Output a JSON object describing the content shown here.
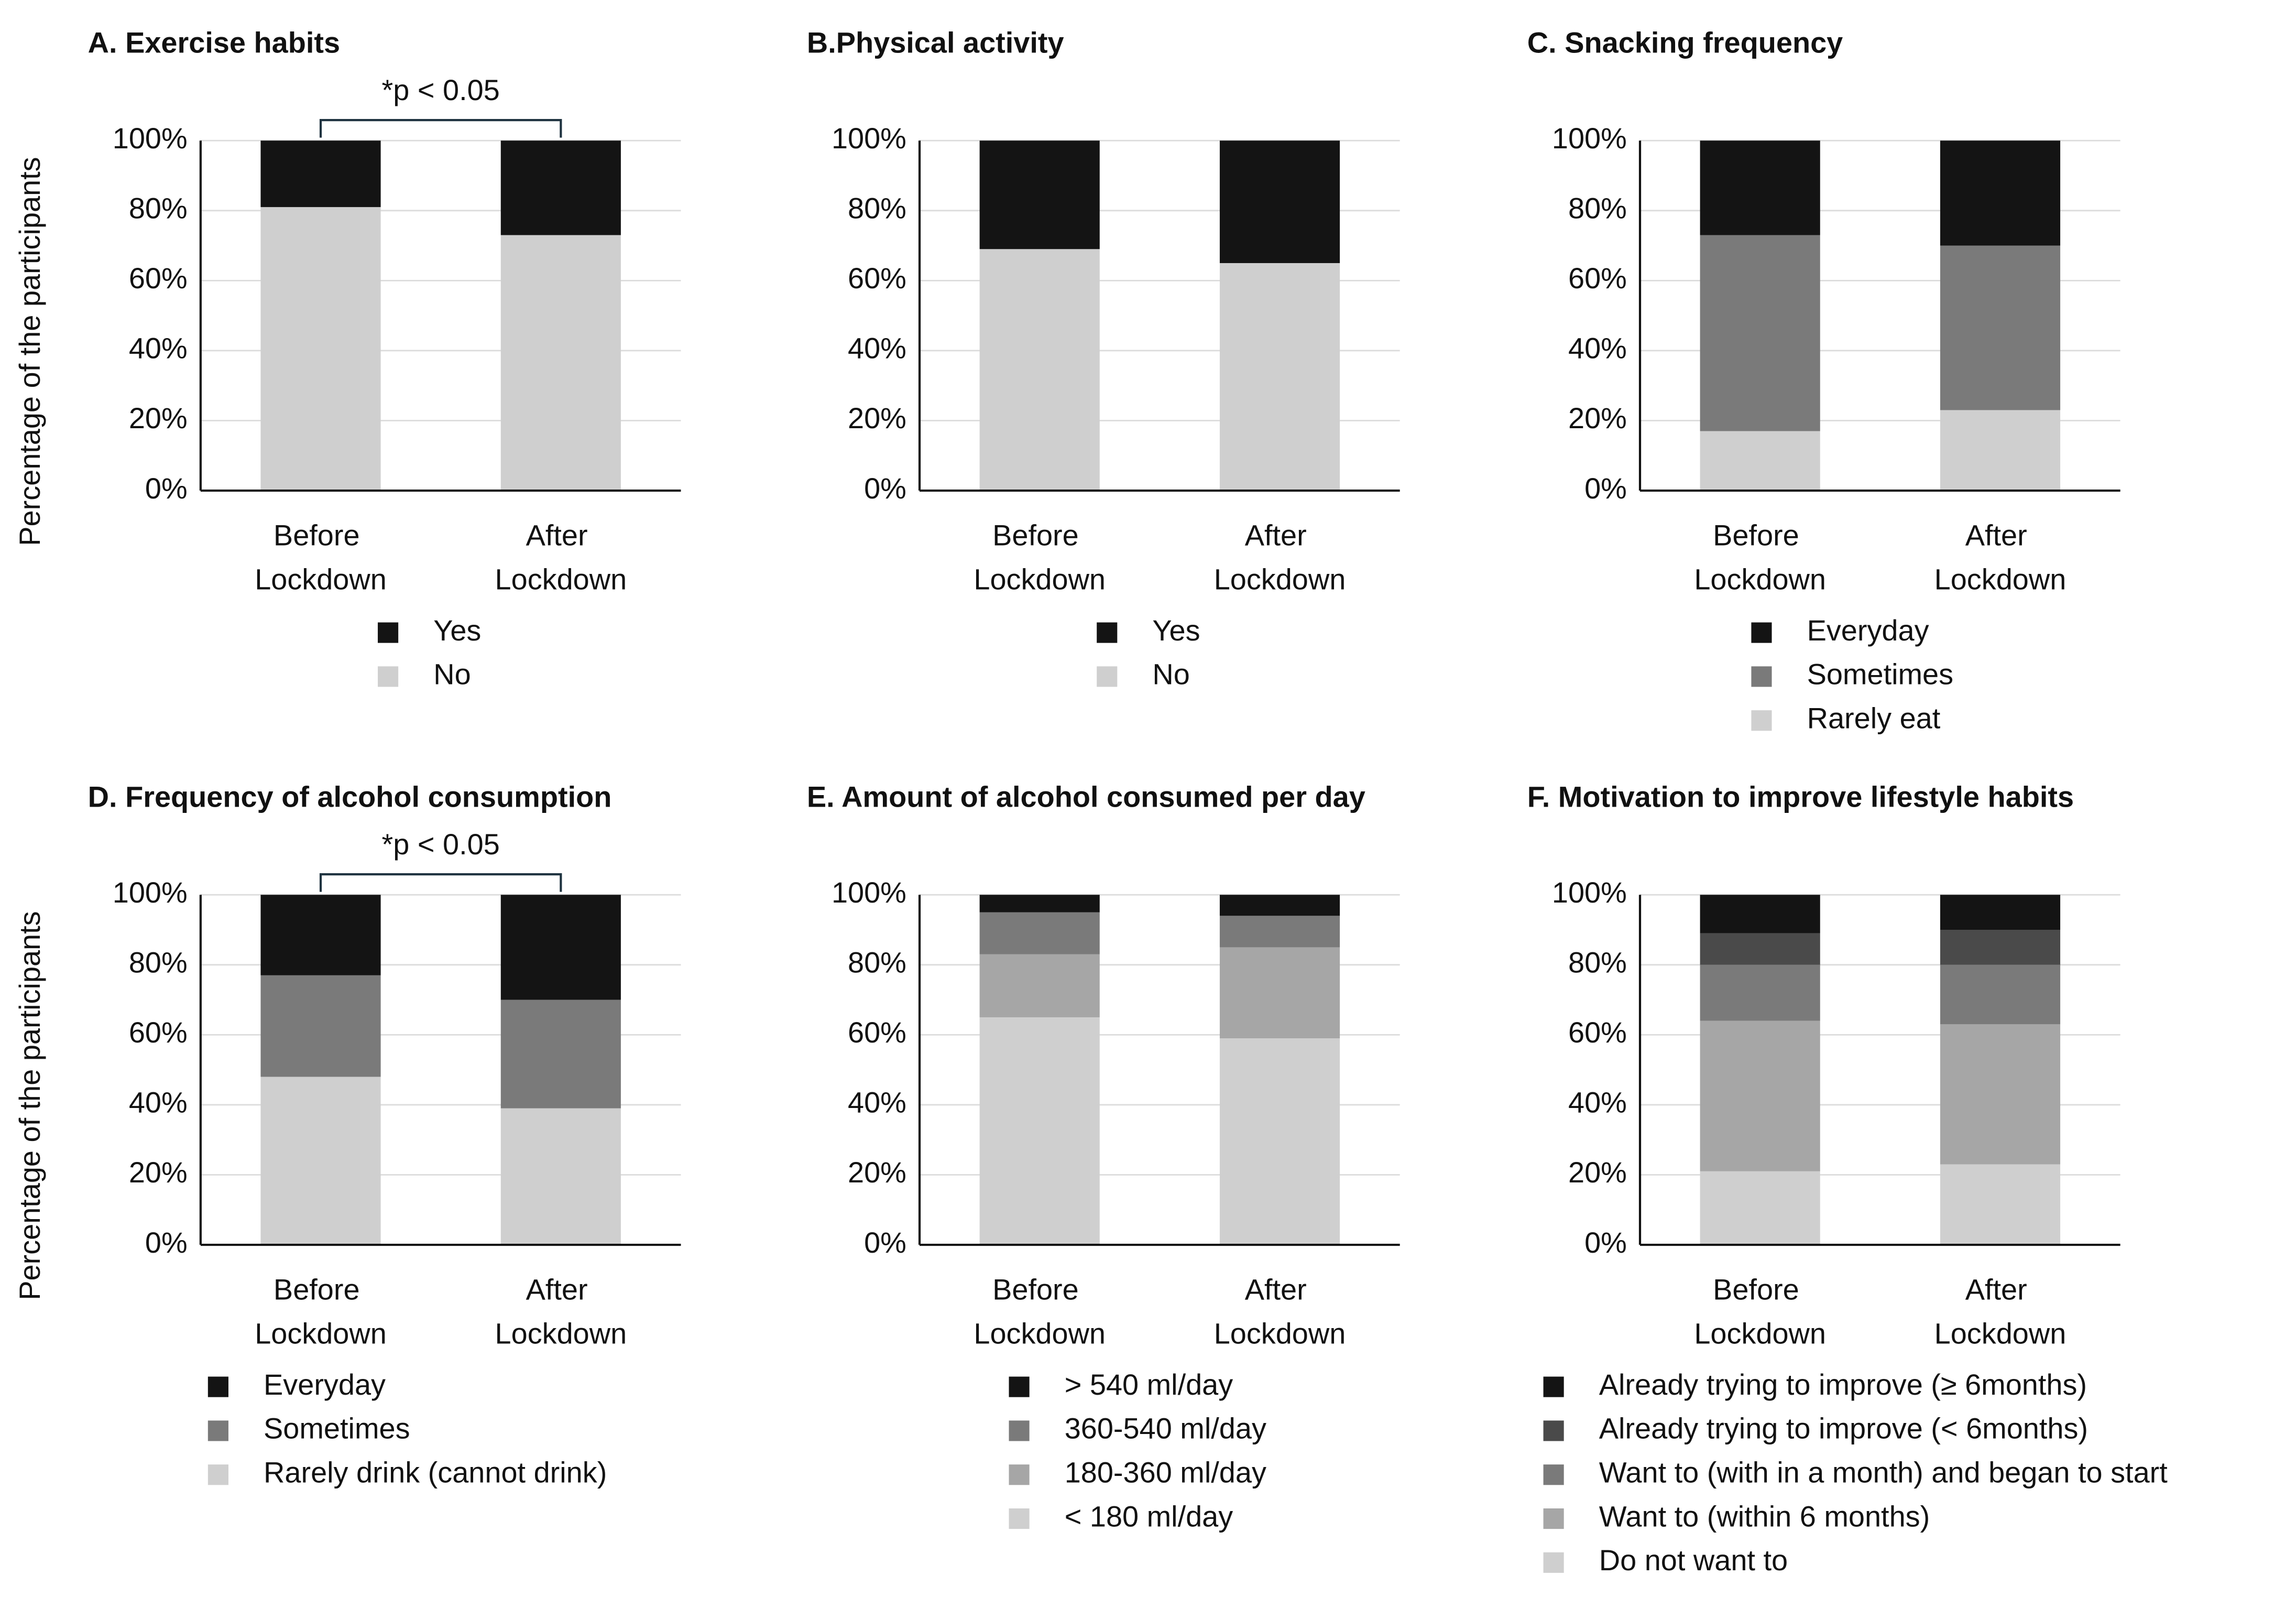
{
  "chart_data": [
    {
      "type": "stacked_bar",
      "title": "A. Exercise habits",
      "ylabel": "Percentage of the participants",
      "annotation": "*p < 0.05",
      "categories": [
        "Before Lockdown",
        "After Lockdown"
      ],
      "series": [
        {
          "name": "Yes",
          "color": "#141414",
          "values": [
            19,
            27
          ]
        },
        {
          "name": "No",
          "color": "#cfcfcf",
          "values": [
            81,
            73
          ]
        }
      ],
      "ylim": [
        0,
        100
      ],
      "yticks": [
        {
          "value": 0,
          "label": "0%"
        },
        {
          "value": 20,
          "label": "20%"
        },
        {
          "value": 40,
          "label": "40%"
        },
        {
          "value": 60,
          "label": "60%"
        },
        {
          "value": 80,
          "label": "80%"
        },
        {
          "value": 100,
          "label": "100%"
        }
      ],
      "grid": true
    },
    {
      "type": "stacked_bar",
      "title": "B.Physical activity",
      "categories": [
        "Before Lockdown",
        "After Lockdown"
      ],
      "series": [
        {
          "name": "Yes",
          "color": "#141414",
          "values": [
            31,
            35
          ]
        },
        {
          "name": "No",
          "color": "#cfcfcf",
          "values": [
            69,
            65
          ]
        }
      ],
      "ylim": [
        0,
        100
      ],
      "yticks": [
        {
          "value": 0,
          "label": "0%"
        },
        {
          "value": 20,
          "label": "20%"
        },
        {
          "value": 40,
          "label": "40%"
        },
        {
          "value": 60,
          "label": "60%"
        },
        {
          "value": 80,
          "label": "80%"
        },
        {
          "value": 100,
          "label": "100%"
        }
      ],
      "grid": true
    },
    {
      "type": "stacked_bar",
      "title": "C. Snacking frequency",
      "categories": [
        "Before Lockdown",
        "After Lockdown"
      ],
      "series": [
        {
          "name": "Everyday",
          "color": "#141414",
          "values": [
            27,
            30
          ]
        },
        {
          "name": "Sometimes",
          "color": "#7a7a7a",
          "values": [
            56,
            47
          ]
        },
        {
          "name": "Rarely eat",
          "color": "#cfcfcf",
          "values": [
            17,
            23
          ]
        }
      ],
      "ylim": [
        0,
        100
      ],
      "yticks": [
        {
          "value": 0,
          "label": "0%"
        },
        {
          "value": 20,
          "label": "20%"
        },
        {
          "value": 40,
          "label": "40%"
        },
        {
          "value": 60,
          "label": "60%"
        },
        {
          "value": 80,
          "label": "80%"
        },
        {
          "value": 100,
          "label": "100%"
        }
      ],
      "grid": true
    },
    {
      "type": "stacked_bar",
      "title": "D. Frequency of alcohol consumption",
      "ylabel": "Percentage of the participants",
      "annotation": "*p < 0.05",
      "categories": [
        "Before Lockdown",
        "After Lockdown"
      ],
      "series": [
        {
          "name": "Everyday",
          "color": "#141414",
          "values": [
            23,
            30
          ]
        },
        {
          "name": "Sometimes",
          "color": "#7a7a7a",
          "values": [
            29,
            31
          ]
        },
        {
          "name": "Rarely drink (cannot drink)",
          "color": "#cfcfcf",
          "values": [
            48,
            39
          ]
        }
      ],
      "ylim": [
        0,
        100
      ],
      "yticks": [
        {
          "value": 0,
          "label": "0%"
        },
        {
          "value": 20,
          "label": "20%"
        },
        {
          "value": 40,
          "label": "40%"
        },
        {
          "value": 60,
          "label": "60%"
        },
        {
          "value": 80,
          "label": "80%"
        },
        {
          "value": 100,
          "label": "100%"
        }
      ],
      "grid": true
    },
    {
      "type": "stacked_bar",
      "title": "E. Amount of alcohol consumed per day",
      "categories": [
        "Before Lockdown",
        "After Lockdown"
      ],
      "series": [
        {
          "name": "> 540 ml/day",
          "color": "#141414",
          "values": [
            5,
            6
          ]
        },
        {
          "name": "360-540 ml/day",
          "color": "#7a7a7a",
          "values": [
            12,
            9
          ]
        },
        {
          "name": "180-360 ml/day",
          "color": "#a6a6a6",
          "values": [
            18,
            26
          ]
        },
        {
          "name": "< 180 ml/day",
          "color": "#cfcfcf",
          "values": [
            65,
            59
          ]
        }
      ],
      "ylim": [
        0,
        100
      ],
      "yticks": [
        {
          "value": 0,
          "label": "0%"
        },
        {
          "value": 20,
          "label": "20%"
        },
        {
          "value": 40,
          "label": "40%"
        },
        {
          "value": 60,
          "label": "60%"
        },
        {
          "value": 80,
          "label": "80%"
        },
        {
          "value": 100,
          "label": "100%"
        }
      ],
      "grid": true
    },
    {
      "type": "stacked_bar",
      "title": "F. Motivation to improve lifestyle habits",
      "categories": [
        "Before Lockdown",
        "After Lockdown"
      ],
      "series": [
        {
          "name": "Already  trying to improve (≥ 6months)",
          "color": "#141414",
          "values": [
            11,
            10
          ]
        },
        {
          "name": "Already  trying to improve (< 6months)",
          "color": "#4a4a4a",
          "values": [
            9,
            10
          ]
        },
        {
          "name": "Want to (with in a month) and began to start",
          "color": "#7a7a7a",
          "values": [
            16,
            17
          ]
        },
        {
          "name": "Want to (within 6 months)",
          "color": "#a6a6a6",
          "values": [
            43,
            40
          ]
        },
        {
          "name": "Do not want to",
          "color": "#cfcfcf",
          "values": [
            21,
            23
          ]
        }
      ],
      "ylim": [
        0,
        100
      ],
      "yticks": [
        {
          "value": 0,
          "label": "0%"
        },
        {
          "value": 20,
          "label": "20%"
        },
        {
          "value": 40,
          "label": "40%"
        },
        {
          "value": 60,
          "label": "60%"
        },
        {
          "value": 80,
          "label": "80%"
        },
        {
          "value": 100,
          "label": "100%"
        }
      ],
      "grid": true
    }
  ]
}
